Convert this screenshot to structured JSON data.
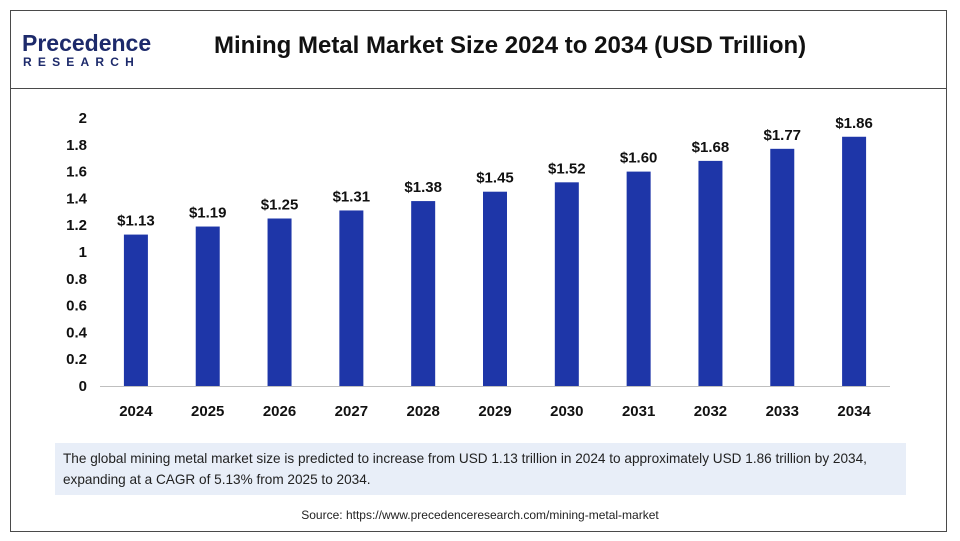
{
  "brand": {
    "name_top": "Precedence",
    "name_bottom": "RESEARCH",
    "color": "#1d2a6b"
  },
  "page_title": "Mining Metal Market Size 2024 to 2034 (USD Trillion)",
  "chart_data": {
    "type": "bar",
    "categories": [
      "2024",
      "2025",
      "2026",
      "2027",
      "2028",
      "2029",
      "2030",
      "2031",
      "2032",
      "2033",
      "2034"
    ],
    "values": [
      1.13,
      1.19,
      1.25,
      1.31,
      1.38,
      1.45,
      1.52,
      1.6,
      1.68,
      1.77,
      1.86
    ],
    "data_labels": [
      "$1.13",
      "$1.19",
      "$1.25",
      "$1.31",
      "$1.38",
      "$1.45",
      "$1.52",
      "$1.60",
      "$1.68",
      "$1.77",
      "$1.86"
    ],
    "yticks": [
      "0",
      "0.2",
      "0.4",
      "0.6",
      "0.8",
      "1",
      "1.2",
      "1.4",
      "1.6",
      "1.8",
      "2"
    ],
    "ylim": [
      0,
      2
    ],
    "bar_color": "#1e36a8",
    "grid": false,
    "legend": false
  },
  "summary_text": "The global mining metal market size is predicted to increase from USD 1.13 trillion in 2024 to approximately USD 1.86 trillion by 2034, expanding at a CAGR of 5.13% from 2025 to 2034.",
  "source_text": "Source: https://www.precedenceresearch.com/mining-metal-market"
}
